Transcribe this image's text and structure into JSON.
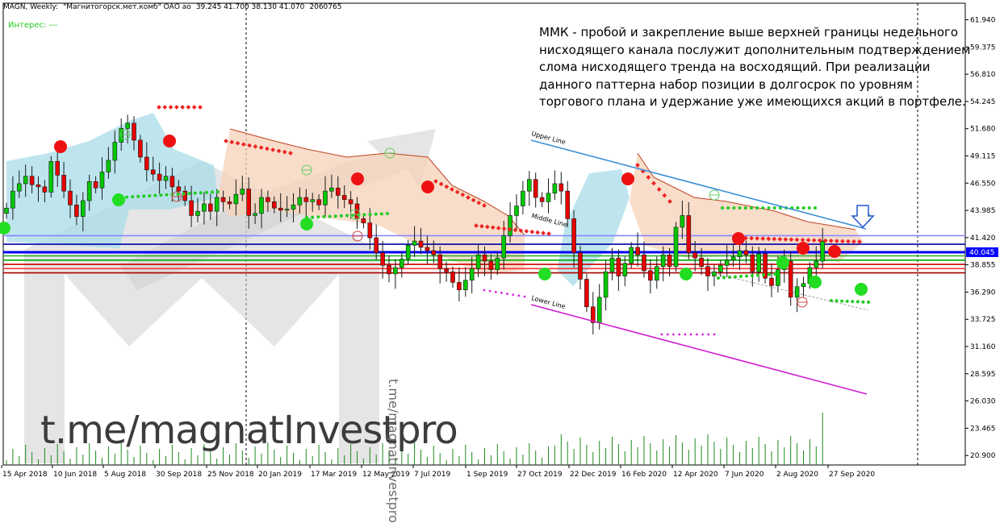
{
  "header": {
    "symbol": "MAGN, Weekly:",
    "name": "\"Магнитогорск.мет.комб\" ОАО ао",
    "ohlc": "39.245 41.700 38.130 41.070",
    "volume": "2060765"
  },
  "indicator_label": "Интерес: ---",
  "annotation": "ММК - пробой и закрепление выше верхней границы недельного нисходящего канала послужит дополнительным подтверждением слома нисходящего тренда на восходящий. При реализации данного паттерна набор позиции в долгосрок по уровням торгового плана и удержание уже имеющихся акций в портфеле.",
  "watermark_big": "t.me/magnatInvestpro",
  "watermark_vertical": "t.me/magnatInvestpro",
  "colors": {
    "bull": "#00c800",
    "bear": "#e60000",
    "channel_upper": "#3a8fd8",
    "channel_lower": "#d020d0",
    "current_price_line": "#0000ff",
    "cloud_bull": "#a8dce8",
    "cloud_bear": "#f6d2b8",
    "signal_buy": "#22dd22",
    "signal_sell": "#ee1111"
  },
  "chart_data": {
    "type": "candlestick",
    "timeframe": "Weekly",
    "current_price": "40.045",
    "ylim": [
      20.0,
      63.5
    ],
    "y_ticks": [
      "61.940",
      "59.375",
      "56.810",
      "54.245",
      "51.680",
      "49.115",
      "46.550",
      "43.985",
      "41.420",
      "38.855",
      "36.290",
      "33.725",
      "31.160",
      "28.595",
      "26.030",
      "23.465",
      "20.900"
    ],
    "x_ticks": [
      "15 Apr 2018",
      "10 Jun 2018",
      "5 Aug 2018",
      "30 Sep 2018",
      "25 Nov 2018",
      "20 Jan 2019",
      "17 Mar 2019",
      "12 May 2019",
      "7 Jul 2019",
      "1 Sep 2019",
      "27 Oct 2019",
      "22 Dec 2019",
      "16 Feb 2020",
      "12 Apr 2020",
      "7 Jun 2020",
      "2 Aug 2020",
      "27 Sep 2020"
    ],
    "channel_labels": {
      "upper": "Upper Line",
      "middle": "Middle Line",
      "lower": "Lower Line"
    },
    "channel": {
      "upper": {
        "from": [
          "Oct 2019",
          51.0
        ],
        "to": [
          "Oct 2020",
          41.8
        ]
      },
      "lower": {
        "from": [
          "Oct 2019",
          34.5
        ],
        "to": [
          "Oct 2020",
          25.7
        ]
      }
    },
    "horizontal_levels": [
      41.6,
      40.8,
      40.1,
      39.7,
      39.3,
      38.9,
      38.5,
      38.1
    ],
    "closes": [
      44.2,
      45.8,
      46.5,
      47.2,
      46.4,
      46.2,
      45.7,
      48.6,
      47.3,
      45.8,
      44.5,
      43.4,
      44.9,
      46.7,
      46.1,
      47.6,
      48.7,
      50.4,
      51.7,
      52.2,
      50.6,
      49.0,
      47.8,
      47.4,
      46.8,
      47.2,
      46.2,
      45.8,
      44.9,
      43.5,
      43.9,
      44.6,
      43.9,
      45.2,
      44.8,
      44.6,
      45.5,
      46.0,
      43.5,
      43.7,
      45.2,
      44.8,
      44.2,
      44.0,
      44.1,
      44.5,
      45.2,
      44.8,
      45.0,
      44.5,
      45.8,
      46.1,
      45.4,
      45.0,
      44.6,
      43.2,
      42.8,
      41.4,
      40.0,
      38.8,
      38.0,
      38.6,
      39.4,
      40.7,
      41.1,
      40.5,
      40.2,
      39.8,
      38.5,
      38.2,
      37.2,
      36.5,
      37.4,
      38.5,
      39.8,
      39.2,
      38.4,
      39.5,
      41.6,
      43.5,
      44.4,
      45.8,
      46.9,
      45.2,
      44.8,
      45.6,
      46.5,
      45.8,
      43.2,
      40.0,
      37.5,
      34.9,
      33.4,
      35.8,
      38.2,
      39.5,
      37.8,
      39.0,
      40.5,
      39.8,
      38.3,
      37.4,
      38.7,
      39.8,
      38.7,
      42.4,
      43.5,
      40.0,
      39.5,
      38.7,
      37.8,
      38.2,
      38.8,
      39.3,
      39.6,
      40.2,
      39.8,
      38.2,
      39.9,
      37.6,
      36.9,
      38.4,
      39.2,
      35.8,
      36.8,
      37.1,
      38.6,
      39.2,
      41.07
    ],
    "volume_last": "2060765"
  }
}
